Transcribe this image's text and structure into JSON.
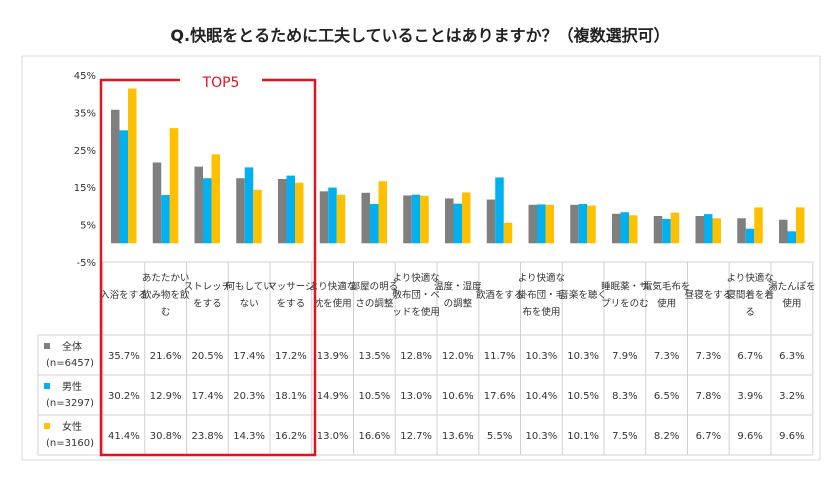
{
  "chart_data": {
    "type": "bar",
    "title": "Q.快眠をとるために工夫していることはありますか？（複数選択可）",
    "annotation": "TOP5",
    "ylim": [
      -5,
      45
    ],
    "yticks": [
      "45%",
      "35%",
      "25%",
      "15%",
      "5%",
      "-5%"
    ],
    "ytick_values": [
      45,
      35,
      25,
      15,
      5,
      -5
    ],
    "grid": false,
    "categories": [
      "入浴をする",
      "あたたかい飲み物を飲む",
      "ストレッチをする",
      "何もしていない",
      "マッサージをする",
      "より快適な枕を使用",
      "部屋の明るさの調整",
      "より快適な敷布団・ベッドを使用",
      "温度・湿度の調整",
      "飲酒をする",
      "より快適な掛布団・毛布を使用",
      "音楽を聴く",
      "睡眠薬・サプリをのむ",
      "電気毛布を使用",
      "昼寝をする",
      "より快適な寝間着を着る",
      "湯たんぽを使用"
    ],
    "series": [
      {
        "name": "全体",
        "n": "(n=6457)",
        "color": "#7f7f7f",
        "values": [
          35.7,
          21.6,
          20.5,
          17.4,
          17.2,
          13.9,
          13.5,
          12.8,
          12.0,
          11.7,
          10.3,
          10.3,
          7.9,
          7.3,
          7.3,
          6.7,
          6.3
        ]
      },
      {
        "name": "男性",
        "n": "(n=3297)",
        "color": "#00b0f0",
        "values": [
          30.2,
          12.9,
          17.4,
          20.3,
          18.1,
          14.9,
          10.5,
          13.0,
          10.6,
          17.6,
          10.4,
          10.5,
          8.3,
          6.5,
          7.8,
          3.9,
          3.2
        ]
      },
      {
        "name": "女性",
        "n": "(n=3160)",
        "color": "#ffc000",
        "values": [
          41.4,
          30.8,
          23.8,
          14.3,
          16.2,
          13.0,
          16.6,
          12.7,
          13.6,
          5.5,
          10.3,
          10.1,
          7.5,
          8.2,
          6.7,
          9.6,
          9.6
        ]
      }
    ],
    "highlight_color": "#e0141e"
  }
}
